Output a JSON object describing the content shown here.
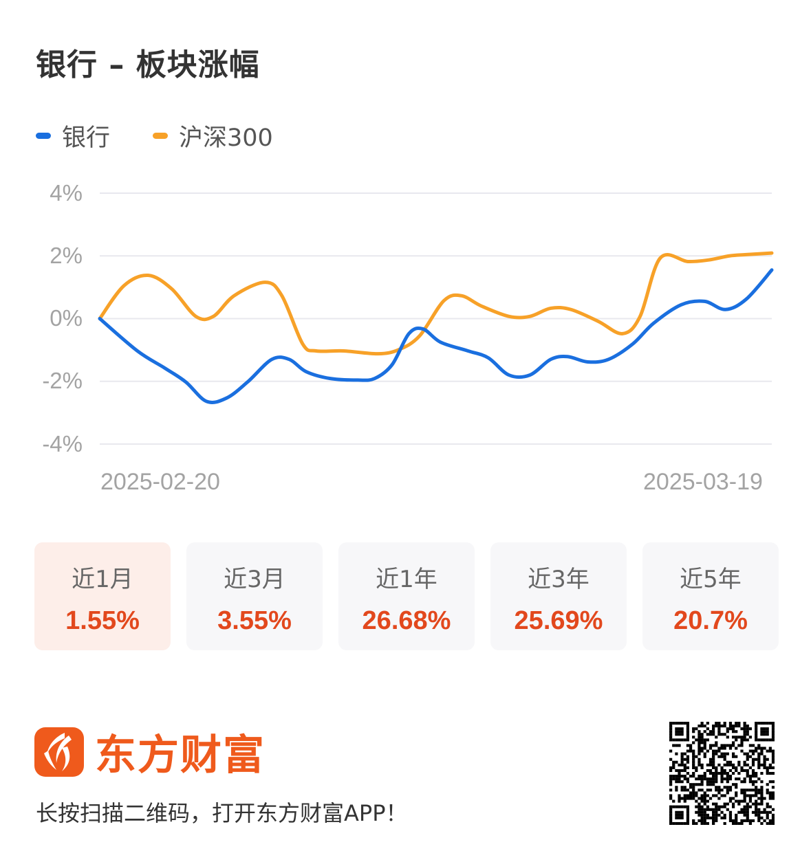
{
  "title": "银行 – 板块涨幅",
  "legend": [
    {
      "label": "银行",
      "color": "#1a6fdf"
    },
    {
      "label": "沪深300",
      "color": "#f7a128"
    }
  ],
  "chart_data": {
    "type": "line",
    "title": "银行 – 板块涨幅",
    "xlabel": "",
    "ylabel": "",
    "x_range": [
      "2025-02-20",
      "2025-03-19"
    ],
    "x_tick_labels": [
      "2025-02-20",
      "2025-03-19"
    ],
    "y_tick_labels": [
      "4%",
      "2%",
      "0%",
      "-2%",
      "-4%"
    ],
    "ylim": [
      -4,
      4
    ],
    "grid": true,
    "legend_position": "top-left",
    "x": [
      0,
      0.056,
      0.097,
      0.128,
      0.159,
      0.189,
      0.22,
      0.256,
      0.282,
      0.307,
      0.343,
      0.384,
      0.409,
      0.435,
      0.46,
      0.481,
      0.507,
      0.548,
      0.578,
      0.609,
      0.64,
      0.671,
      0.696,
      0.726,
      0.757,
      0.793,
      0.824,
      0.865,
      0.9,
      0.931,
      0.962,
      1.0
    ],
    "series": [
      {
        "name": "银行",
        "color": "#1a6fdf",
        "values": [
          0.0,
          -1.03,
          -1.58,
          -2.02,
          -2.64,
          -2.53,
          -2.02,
          -1.3,
          -1.3,
          -1.69,
          -1.91,
          -1.96,
          -1.91,
          -1.47,
          -0.48,
          -0.33,
          -0.75,
          -1.03,
          -1.25,
          -1.8,
          -1.8,
          -1.3,
          -1.21,
          -1.38,
          -1.3,
          -0.81,
          -0.15,
          0.44,
          0.55,
          0.29,
          0.62,
          1.55
        ]
      },
      {
        "name": "沪深300",
        "color": "#f7a128",
        "x": [
          0,
          0.036,
          0.072,
          0.107,
          0.143,
          0.169,
          0.2,
          0.246,
          0.271,
          0.302,
          0.322,
          0.363,
          0.414,
          0.445,
          0.476,
          0.512,
          0.538,
          0.568,
          0.609,
          0.64,
          0.671,
          0.701,
          0.742,
          0.778,
          0.804,
          0.834,
          0.875,
          0.906,
          0.937,
          0.962,
          1.0
        ],
        "values": [
          0.0,
          1.05,
          1.38,
          0.95,
          0.07,
          0.07,
          0.73,
          1.16,
          0.73,
          -0.81,
          -1.03,
          -1.03,
          -1.12,
          -0.99,
          -0.55,
          0.57,
          0.73,
          0.4,
          0.07,
          0.07,
          0.33,
          0.29,
          -0.09,
          -0.48,
          0.07,
          1.93,
          1.82,
          1.87,
          2.0,
          2.04,
          2.09
        ]
      }
    ]
  },
  "periods": [
    {
      "label": "近1月",
      "value": "1.55%",
      "active": true
    },
    {
      "label": "近3月",
      "value": "3.55%",
      "active": false
    },
    {
      "label": "近1年",
      "value": "26.68%",
      "active": false
    },
    {
      "label": "近3年",
      "value": "25.69%",
      "active": false
    },
    {
      "label": "近5年",
      "value": "20.7%",
      "active": false
    }
  ],
  "footer": {
    "brand": "东方财富",
    "brand_color": "#ef5a1c",
    "prompt": "长按扫描二维码，打开东方财富APP！",
    "qr_icon": "qr-code-icon"
  }
}
